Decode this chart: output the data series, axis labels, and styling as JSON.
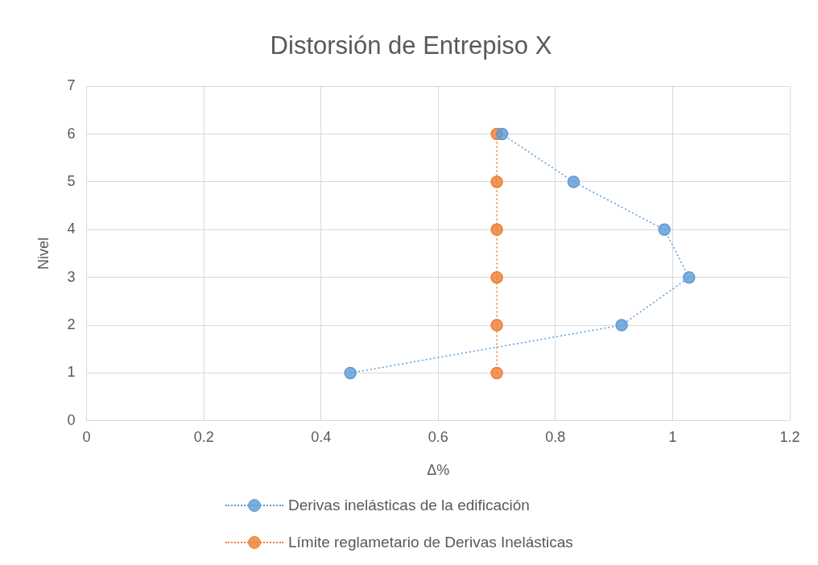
{
  "chart_data": {
    "type": "line",
    "title": "Distorsión de Entrepiso X",
    "xlabel": "Δ%",
    "ylabel": "Nivel",
    "xlim": [
      0,
      1.2
    ],
    "xticks": [
      0,
      0.2,
      0.4,
      0.6,
      0.8,
      1,
      1.2
    ],
    "ylim": [
      0,
      7
    ],
    "yticks": [
      0,
      1,
      2,
      3,
      4,
      5,
      6,
      7
    ],
    "grid": true,
    "legend": "bottom",
    "marker": "circle",
    "line_style": "dotted",
    "series": [
      {
        "name": "Derivas inelásticas de la edificación",
        "color": "#5b9bd5",
        "x": [
          0.45,
          0.913,
          1.028,
          0.986,
          0.831,
          0.709
        ],
        "values": [
          1,
          2,
          3,
          4,
          5,
          6
        ]
      },
      {
        "name": "Límite reglametario de Derivas Inelásticas",
        "color": "#ed7d31",
        "x": [
          0.7,
          0.7,
          0.7,
          0.7,
          0.7,
          0.7
        ],
        "values": [
          1,
          2,
          3,
          4,
          5,
          6
        ]
      }
    ]
  }
}
